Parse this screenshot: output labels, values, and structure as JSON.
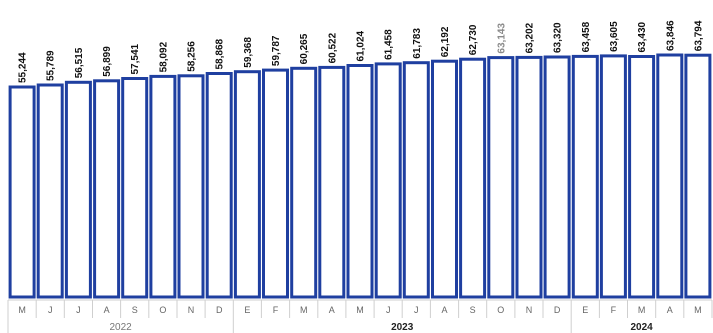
{
  "chart_data": {
    "type": "bar",
    "title": "",
    "xlabel": "",
    "ylabel": "",
    "categories": [
      "M",
      "J",
      "J",
      "A",
      "S",
      "O",
      "N",
      "D",
      "E",
      "F",
      "M",
      "A",
      "M",
      "J",
      "J",
      "A",
      "S",
      "O",
      "N",
      "D",
      "E",
      "F",
      "M",
      "A",
      "M"
    ],
    "values": [
      55244,
      55789,
      56515,
      56899,
      57541,
      58092,
      58256,
      58868,
      59368,
      59787,
      60265,
      60522,
      61024,
      61458,
      61783,
      62192,
      62730,
      63143,
      63202,
      63320,
      63458,
      63605,
      63430,
      63846,
      63794
    ],
    "labels": [
      "55,244",
      "55,789",
      "56,515",
      "56,899",
      "57,541",
      "58,092",
      "58,256",
      "58,868",
      "59,368",
      "59,787",
      "60,265",
      "60,522",
      "61,024",
      "61,458",
      "61,783",
      "62,192",
      "62,730",
      "63,143",
      "63,202",
      "63,320",
      "63,458",
      "63,605",
      "63,430",
      "63,846",
      "63,794"
    ],
    "years": [
      {
        "label": "2022",
        "start": 0,
        "end": 7
      },
      {
        "label": "2023",
        "start": 8,
        "end": 19
      },
      {
        "label": "2024",
        "start": 20,
        "end": 24
      }
    ],
    "ylim": [
      0,
      63846
    ],
    "grid": false,
    "legend": "none"
  },
  "colors": {
    "bar_outline": "#1f3fa0",
    "bar_fill": "#ffffff"
  }
}
